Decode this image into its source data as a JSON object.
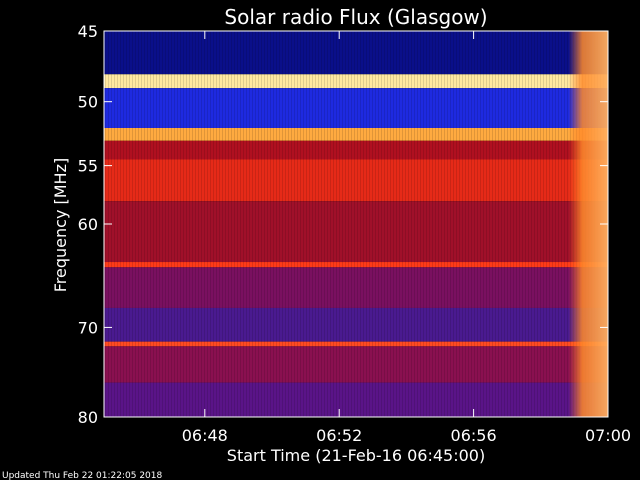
{
  "chart_data": {
    "type": "heatmap",
    "title": "Solar radio Flux (Glasgow)",
    "ylabel": "Frequency [MHz]",
    "xlabel": "Start Time (21-Feb-16 06:45:00)",
    "footer": "Updated Thu Feb 22 01:22:05 2018",
    "x_ticks": [
      "06:48",
      "06:52",
      "06:56",
      "07:00"
    ],
    "y_ticks": [
      "45",
      "50",
      "55",
      "60",
      "70",
      "80"
    ],
    "x_range": [
      "06:45",
      "07:00"
    ],
    "y_range": [
      45,
      80
    ],
    "y_scale": "log",
    "grid": false,
    "bands": [
      {
        "f_from": 45.0,
        "f_to": 48.0,
        "color": "#0a0f8a"
      },
      {
        "f_from": 48.0,
        "f_to": 49.0,
        "color": "#ffe8a0"
      },
      {
        "f_from": 49.0,
        "f_to": 52.0,
        "color": "#1e2ae0"
      },
      {
        "f_from": 52.0,
        "f_to": 53.0,
        "color": "#ffaa40"
      },
      {
        "f_from": 53.0,
        "f_to": 54.5,
        "color": "#b01020"
      },
      {
        "f_from": 54.5,
        "f_to": 58.0,
        "color": "#e62a18"
      },
      {
        "f_from": 58.0,
        "f_to": 63.5,
        "color": "#a0102a"
      },
      {
        "f_from": 63.5,
        "f_to": 64.0,
        "color": "#ff3a18"
      },
      {
        "f_from": 64.0,
        "f_to": 68.0,
        "color": "#7a1060"
      },
      {
        "f_from": 68.0,
        "f_to": 71.5,
        "color": "#4a1a90"
      },
      {
        "f_from": 71.5,
        "f_to": 72.0,
        "color": "#ff4a20"
      },
      {
        "f_from": 72.0,
        "f_to": 76.0,
        "color": "#8a1050"
      },
      {
        "f_from": 76.0,
        "f_to": 80.0,
        "color": "#5a1488"
      }
    ],
    "burst_start": "06:59",
    "colors": {
      "background": "#000000",
      "text": "#ffffff",
      "burst": "#ff7a20"
    }
  }
}
